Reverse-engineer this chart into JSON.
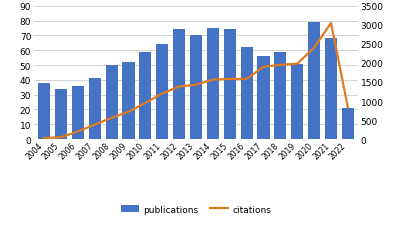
{
  "years": [
    2004,
    2005,
    2006,
    2007,
    2008,
    2009,
    2010,
    2011,
    2012,
    2013,
    2014,
    2015,
    2016,
    2017,
    2018,
    2019,
    2020,
    2021,
    2022
  ],
  "publications": [
    38,
    34,
    36,
    41,
    50,
    52,
    59,
    64,
    74,
    70,
    75,
    74,
    62,
    56,
    59,
    51,
    79,
    68,
    21
  ],
  "citations": [
    30,
    50,
    200,
    380,
    560,
    720,
    950,
    1200,
    1380,
    1430,
    1560,
    1580,
    1580,
    1900,
    1950,
    1980,
    2400,
    3050,
    830
  ],
  "bar_color": "#4472C4",
  "line_color": "#E07B20",
  "pub_ylim": [
    0,
    90
  ],
  "pub_yticks": [
    0,
    10,
    20,
    30,
    40,
    50,
    60,
    70,
    80,
    90
  ],
  "cit_ylim": [
    0,
    3500
  ],
  "cit_yticks": [
    0,
    500,
    1000,
    1500,
    2000,
    2500,
    3000,
    3500
  ],
  "legend_pub": "publications",
  "legend_cit": "citations",
  "background_color": "#ffffff",
  "grid_color": "#cccccc"
}
